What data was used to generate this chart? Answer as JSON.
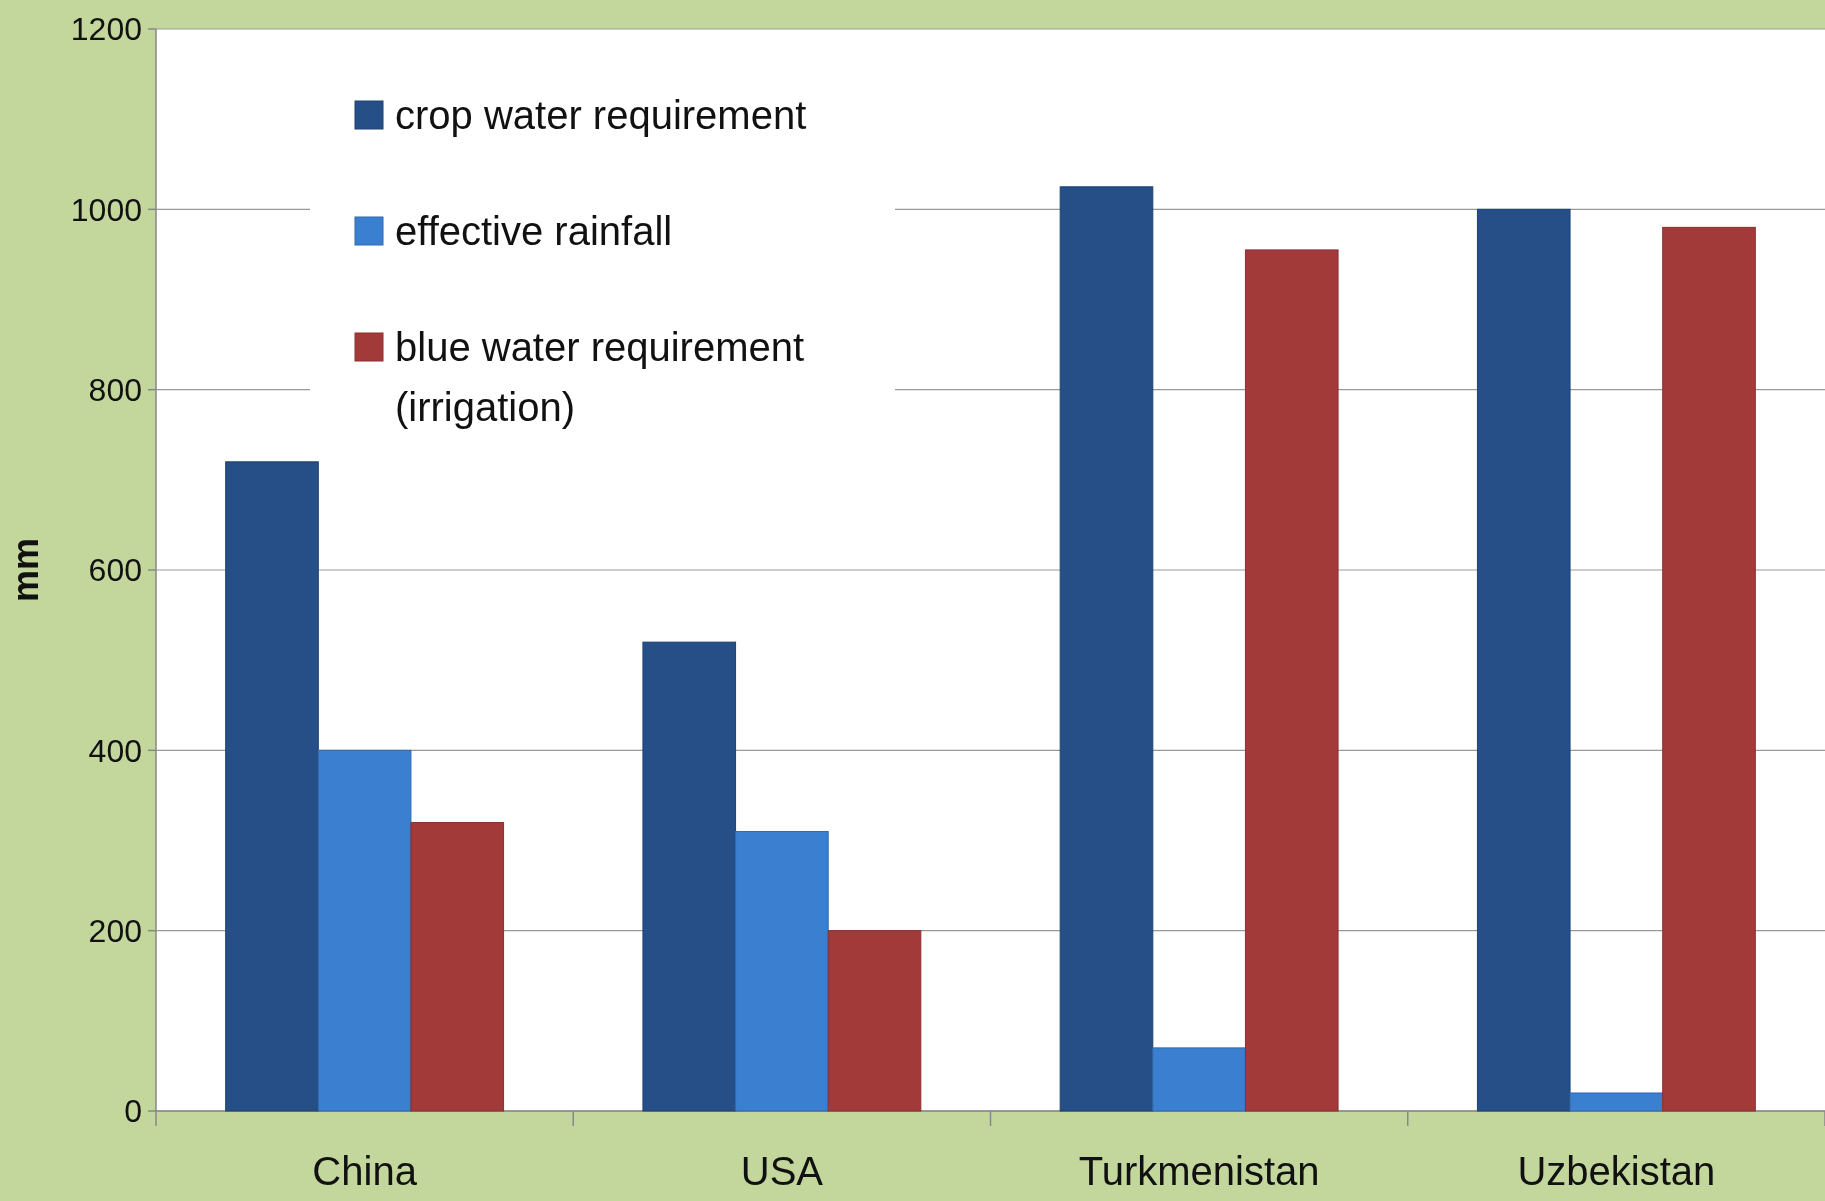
{
  "chart_data": {
    "type": "bar",
    "ylabel": "mm",
    "categories": [
      "China",
      "USA",
      "Turkmenistan",
      "Uzbekistan"
    ],
    "series": [
      {
        "name": "crop water requirement",
        "color": "#254f86",
        "values": [
          720,
          520,
          1025,
          1000
        ]
      },
      {
        "name": "effective rainfall",
        "color": "#3a7fd0",
        "values": [
          400,
          310,
          70,
          20
        ]
      },
      {
        "name": "blue water requirement (irrigation)",
        "color": "#a33a3a",
        "values": [
          320,
          200,
          955,
          980
        ]
      }
    ],
    "ylim": [
      0,
      1200
    ],
    "yticks": [
      0,
      200,
      400,
      600,
      800,
      1000,
      1200
    ],
    "grid": "y",
    "legend": "top left"
  }
}
